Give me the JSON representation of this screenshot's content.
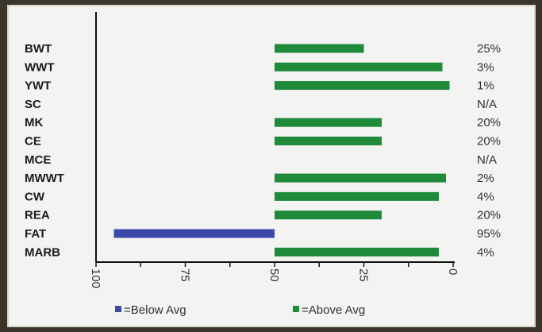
{
  "chart_data": {
    "type": "bar",
    "orientation": "horizontal",
    "x_reversed": true,
    "categories": [
      "BWT",
      "WWT",
      "YWT",
      "SC",
      "MK",
      "CE",
      "MCE",
      "MWWT",
      "CW",
      "REA",
      "FAT",
      "MARB"
    ],
    "values": [
      25,
      3,
      1,
      null,
      20,
      20,
      null,
      2,
      4,
      20,
      95,
      4
    ],
    "value_labels": [
      "25%",
      "3%",
      "1%",
      "N/A",
      "20%",
      "20%",
      "N/A",
      "2%",
      "4%",
      "20%",
      "95%",
      "4%"
    ],
    "baseline": 50,
    "xlim": [
      100,
      0
    ],
    "xticks": [
      "100",
      "75",
      "50",
      "25",
      "0"
    ],
    "colors": {
      "below": "#3b4aa8",
      "above": "#1e8a3a"
    },
    "legend": [
      {
        "label": "=Below Avg",
        "color": "#3b4aa8"
      },
      {
        "label": "=Above Avg",
        "color": "#1e8a3a"
      }
    ]
  }
}
